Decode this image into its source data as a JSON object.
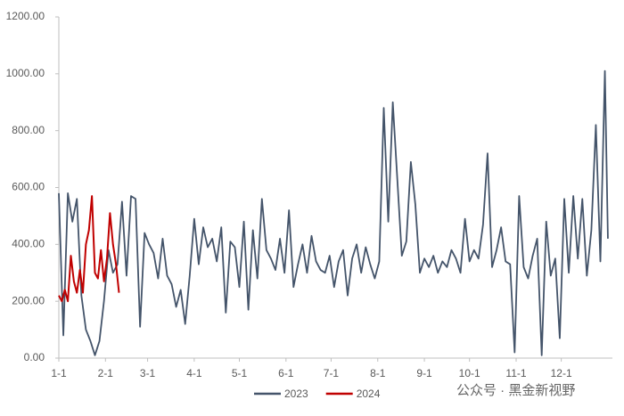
{
  "chart_data": {
    "type": "line",
    "x_2023_note_free": null,
    "series": [
      {
        "name": "2023",
        "color": "#44546a",
        "x": [
          1,
          4,
          7,
          10,
          13,
          16,
          19,
          22,
          25,
          28,
          31,
          34,
          37,
          40,
          43,
          46,
          49,
          52,
          55,
          58,
          61,
          64,
          67,
          70,
          73,
          76,
          79,
          82,
          85,
          88,
          91,
          94,
          97,
          100,
          103,
          106,
          109,
          112,
          115,
          118,
          121,
          124,
          127,
          130,
          133,
          136,
          139,
          142,
          145,
          148,
          151,
          154,
          157,
          160,
          163,
          166,
          169,
          172,
          175,
          178,
          181,
          184,
          187,
          190,
          193,
          196,
          199,
          202,
          205,
          208,
          211,
          214,
          217,
          220,
          223,
          226,
          229,
          232,
          235,
          238,
          241,
          244,
          247,
          250,
          253,
          256,
          259,
          262,
          265,
          268,
          271,
          274,
          277,
          280,
          283,
          286,
          289,
          292,
          295,
          298,
          301,
          304,
          307,
          310,
          313,
          316,
          319,
          322,
          325,
          328,
          331,
          334,
          337,
          340,
          343,
          346,
          349,
          352,
          355,
          358,
          361,
          364,
          366
        ],
        "values": [
          580,
          80,
          580,
          480,
          560,
          220,
          100,
          60,
          10,
          60,
          200,
          380,
          300,
          330,
          550,
          290,
          570,
          560,
          110,
          440,
          400,
          370,
          280,
          420,
          290,
          260,
          180,
          240,
          120,
          290,
          490,
          330,
          460,
          390,
          420,
          340,
          460,
          160,
          410,
          390,
          250,
          480,
          170,
          450,
          280,
          560,
          380,
          350,
          310,
          420,
          300,
          520,
          250,
          330,
          400,
          300,
          430,
          340,
          310,
          300,
          360,
          250,
          340,
          380,
          220,
          350,
          400,
          300,
          390,
          330,
          280,
          340,
          880,
          480,
          900,
          630,
          360,
          410,
          690,
          540,
          300,
          350,
          320,
          360,
          300,
          340,
          320,
          380,
          350,
          300,
          490,
          340,
          380,
          350,
          470,
          720,
          320,
          380,
          460,
          340,
          330,
          20,
          570,
          320,
          280,
          360,
          420,
          10,
          480,
          290,
          350,
          70,
          560,
          300,
          570,
          350,
          560,
          290,
          450,
          820,
          340,
          1010,
          420
        ]
      },
      {
        "name": "2024",
        "color": "#c00000",
        "x": [
          1,
          3,
          5,
          7,
          9,
          11,
          13,
          15,
          17,
          19,
          21,
          23,
          25,
          27,
          29,
          31,
          33,
          35,
          37,
          39,
          41
        ],
        "values": [
          220,
          200,
          240,
          200,
          360,
          270,
          230,
          310,
          230,
          400,
          450,
          570,
          300,
          280,
          380,
          270,
          350,
          510,
          400,
          330,
          230
        ]
      }
    ],
    "xlim": [
      1,
      369
    ],
    "xticks": [
      {
        "value": 1,
        "label": "1-1"
      },
      {
        "value": 32,
        "label": "2-1"
      },
      {
        "value": 60,
        "label": "3-1"
      },
      {
        "value": 91,
        "label": "4-1"
      },
      {
        "value": 121,
        "label": "5-1"
      },
      {
        "value": 152,
        "label": "6-1"
      },
      {
        "value": 182,
        "label": "7-1"
      },
      {
        "value": 213,
        "label": "8-1"
      },
      {
        "value": 244,
        "label": "9-1"
      },
      {
        "value": 274,
        "label": "10-1"
      },
      {
        "value": 305,
        "label": "11-1"
      },
      {
        "value": 335,
        "label": "12-1"
      }
    ],
    "ylim": [
      0,
      1200
    ],
    "yticks": [
      {
        "value": 0,
        "label": "0.00"
      },
      {
        "value": 200,
        "label": "200.00"
      },
      {
        "value": 400,
        "label": "400.00"
      },
      {
        "value": 600,
        "label": "600.00"
      },
      {
        "value": 800,
        "label": "800.00"
      },
      {
        "value": 1000,
        "label": "1000.00"
      },
      {
        "value": 1200,
        "label": "1200.00"
      }
    ],
    "watermark": "公众号 · 黑金新视野"
  }
}
